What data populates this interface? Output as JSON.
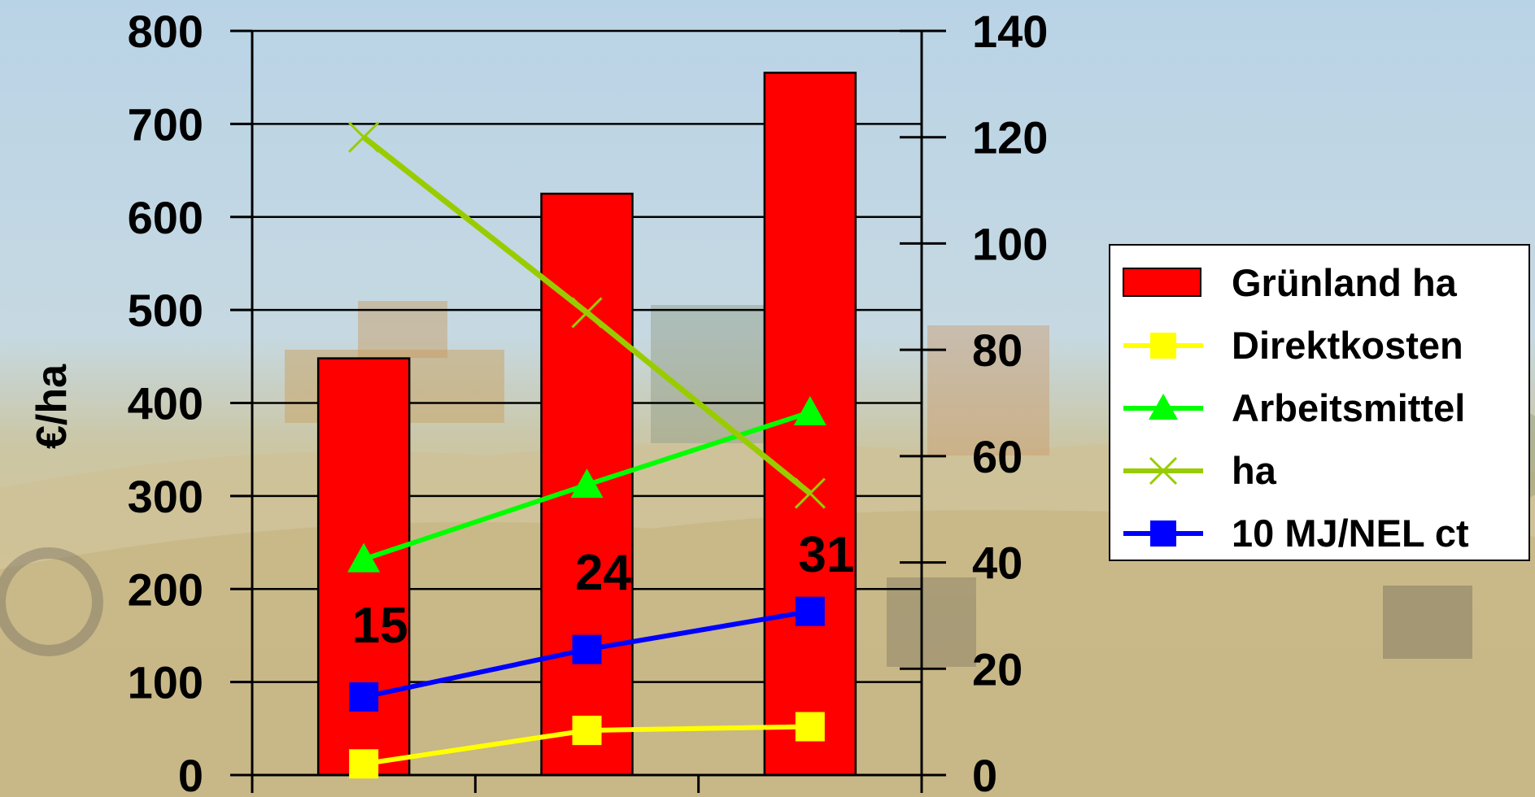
{
  "chart_data": {
    "type": "bar",
    "ylabel": "€/ha",
    "categories": [
      "",
      "",
      ""
    ],
    "left_axis": {
      "ylim": [
        0,
        800
      ],
      "ticks": [
        0,
        100,
        200,
        300,
        400,
        500,
        600,
        700,
        800
      ]
    },
    "right_axis": {
      "ylim": [
        0,
        140
      ],
      "ticks": [
        0,
        20,
        40,
        60,
        80,
        100,
        120,
        140
      ]
    },
    "bar_labels": [
      "15",
      "24",
      "31"
    ],
    "series": [
      {
        "name": "Grünland ha",
        "kind": "bar",
        "axis": "left",
        "values": [
          448,
          625,
          755
        ],
        "color": "#ff0000"
      },
      {
        "name": "Direktkosten",
        "kind": "line",
        "marker": "square",
        "axis": "left",
        "values": [
          12,
          48,
          52
        ],
        "color": "#ffff00"
      },
      {
        "name": "Arbeitsmittel",
        "kind": "line",
        "marker": "triangle",
        "axis": "left",
        "values": [
          232,
          312,
          390
        ],
        "color": "#00ff00"
      },
      {
        "name": "ha",
        "kind": "line",
        "marker": "x",
        "axis": "right",
        "values": [
          120,
          87,
          53
        ],
        "color": "#99cc00"
      },
      {
        "name": "10 MJ/NEL ct",
        "kind": "line",
        "marker": "square",
        "axis": "left",
        "values": [
          84,
          135,
          176
        ],
        "color": "#0000ff"
      }
    ],
    "grid": true,
    "legend_position": "right"
  }
}
